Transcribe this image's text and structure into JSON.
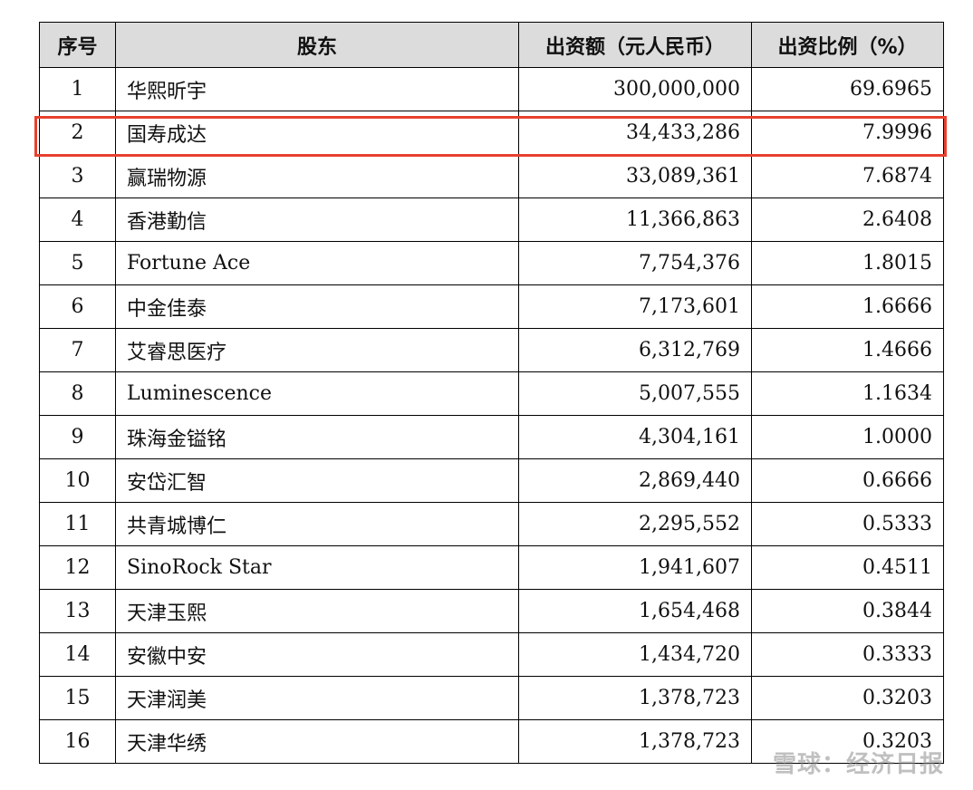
{
  "table": {
    "headers": [
      "序号",
      "股东",
      "出资额（元人民币）",
      "出资比例（%）"
    ],
    "rows": [
      {
        "index": "1",
        "shareholder": "华熙昕宇",
        "capital": "300,000,000",
        "ratio": "69.6965"
      },
      {
        "index": "2",
        "shareholder": "国寿成达",
        "capital": "34,433,286",
        "ratio": "7.9996"
      },
      {
        "index": "3",
        "shareholder": "赢瑞物源",
        "capital": "33,089,361",
        "ratio": "7.6874"
      },
      {
        "index": "4",
        "shareholder": "香港勤信",
        "capital": "11,366,863",
        "ratio": "2.6408"
      },
      {
        "index": "5",
        "shareholder": "Fortune Ace",
        "capital": "7,754,376",
        "ratio": "1.8015"
      },
      {
        "index": "6",
        "shareholder": "中金佳泰",
        "capital": "7,173,601",
        "ratio": "1.6666"
      },
      {
        "index": "7",
        "shareholder": "艾睿思医疗",
        "capital": "6,312,769",
        "ratio": "1.4666"
      },
      {
        "index": "8",
        "shareholder": "Luminescence",
        "capital": "5,007,555",
        "ratio": "1.1634"
      },
      {
        "index": "9",
        "shareholder": "珠海金镒铭",
        "capital": "4,304,161",
        "ratio": "1.0000"
      },
      {
        "index": "10",
        "shareholder": "安岱汇智",
        "capital": "2,869,440",
        "ratio": "0.6666"
      },
      {
        "index": "11",
        "shareholder": "共青城博仁",
        "capital": "2,295,552",
        "ratio": "0.5333"
      },
      {
        "index": "12",
        "shareholder": "SinoRock Star",
        "capital": "1,941,607",
        "ratio": "0.4511"
      },
      {
        "index": "13",
        "shareholder": "天津玉熙",
        "capital": "1,654,468",
        "ratio": "0.3844"
      },
      {
        "index": "14",
        "shareholder": "安徽中安",
        "capital": "1,434,720",
        "ratio": "0.3333"
      },
      {
        "index": "15",
        "shareholder": "天津润美",
        "capital": "1,378,723",
        "ratio": "0.3203"
      },
      {
        "index": "16",
        "shareholder": "天津华绣",
        "capital": "1,378,723",
        "ratio": "0.3203"
      }
    ],
    "highlighted_row_index": "2",
    "highlight_color": "#e8402f"
  },
  "watermark": "雪球：经济日报"
}
